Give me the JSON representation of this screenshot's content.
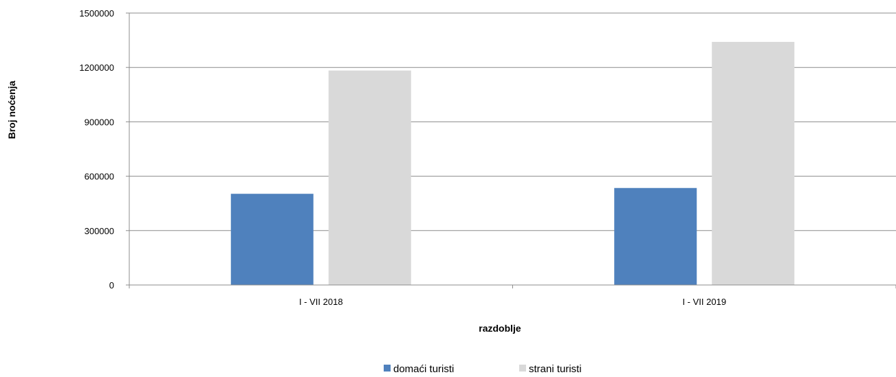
{
  "chart_data": {
    "type": "bar",
    "categories": [
      "I - VII 2018",
      "I - VII 2019"
    ],
    "series": [
      {
        "name": "domaći turisti",
        "values": [
          503000,
          535000
        ],
        "color": "#4f81bd"
      },
      {
        "name": "strani turisti",
        "values": [
          1183000,
          1341000
        ],
        "color": "#d9d9d9"
      }
    ],
    "xlabel": "razdoblje",
    "ylabel": "Broj noćenja",
    "ylim": [
      0,
      1500000
    ],
    "yticks": [
      0,
      300000,
      600000,
      900000,
      1200000,
      1500000
    ],
    "ytick_labels": [
      "0",
      "300000",
      "600000",
      "900000",
      "1200000",
      "1500000"
    ],
    "grid": true,
    "legend_position": "bottom"
  }
}
